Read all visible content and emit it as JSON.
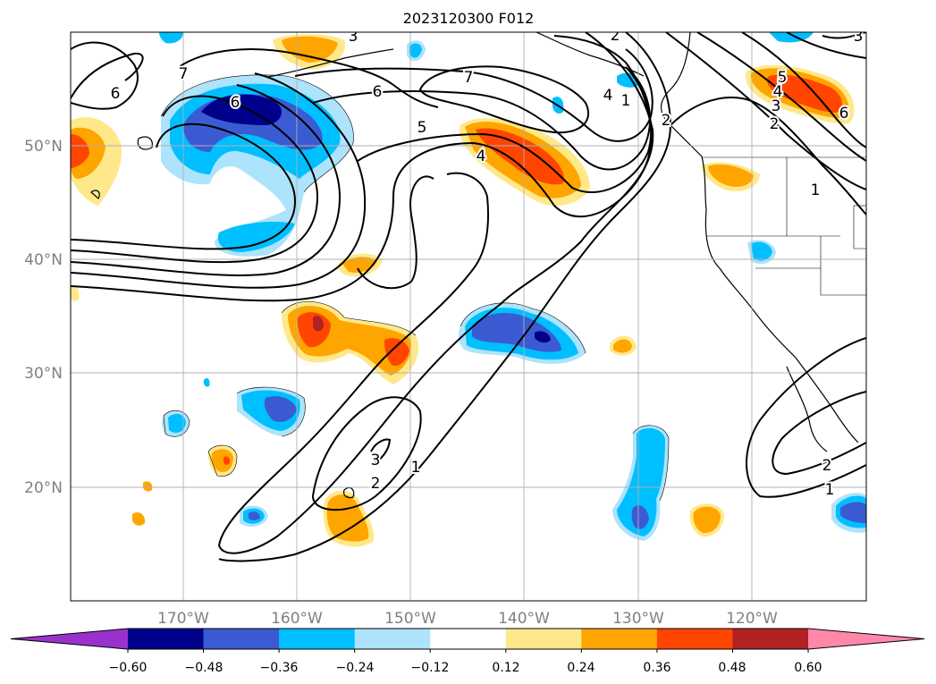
{
  "title": "2023120300 F012",
  "map": {
    "lat_labels": [
      {
        "text": "50°N",
        "lat": 50
      },
      {
        "text": "40°N",
        "lat": 40
      },
      {
        "text": "30°N",
        "lat": 30
      },
      {
        "text": "20°N",
        "lat": 20
      }
    ],
    "lon_labels": [
      {
        "text": "170°W",
        "lon": -170
      },
      {
        "text": "160°W",
        "lon": -160
      },
      {
        "text": "150°W",
        "lon": -150
      },
      {
        "text": "140°W",
        "lon": -140
      },
      {
        "text": "130°W",
        "lon": -130
      },
      {
        "text": "120°W",
        "lon": -120
      }
    ],
    "lon_range": [
      -180,
      -110
    ],
    "lat_range": [
      10,
      60
    ],
    "grid": true,
    "contour_labels": [
      "6",
      "7",
      "6",
      "5",
      "4",
      "7",
      "3",
      "1",
      "2",
      "3",
      "2",
      "1",
      "5",
      "4",
      "3",
      "2",
      "6",
      "2",
      "1",
      "2",
      "3",
      "1",
      "4",
      "6"
    ]
  },
  "colorbar": {
    "tick_labels": [
      "−0.60",
      "−0.48",
      "−0.36",
      "−0.24",
      "−0.12",
      "0.12",
      "0.24",
      "0.36",
      "0.48",
      "0.60"
    ],
    "colors": [
      "#9932cc",
      "#00008b",
      "#3a5bd1",
      "#00bfff",
      "#ade3fb",
      "#ffffff",
      "#ffe88a",
      "#ffa500",
      "#ff4500",
      "#b22222",
      "#ff88aa"
    ]
  },
  "colors": {
    "neg_strong": "#00008b",
    "neg_mid": "#3a5bd1",
    "neg_light": "#00bfff",
    "neg_pale": "#ade3fb",
    "pos_pale": "#ffe88a",
    "pos_light": "#ffa500",
    "pos_mid": "#ff4500",
    "pos_strong": "#b22222",
    "grid": "#b0b0b0",
    "axis_label": "#808080"
  }
}
